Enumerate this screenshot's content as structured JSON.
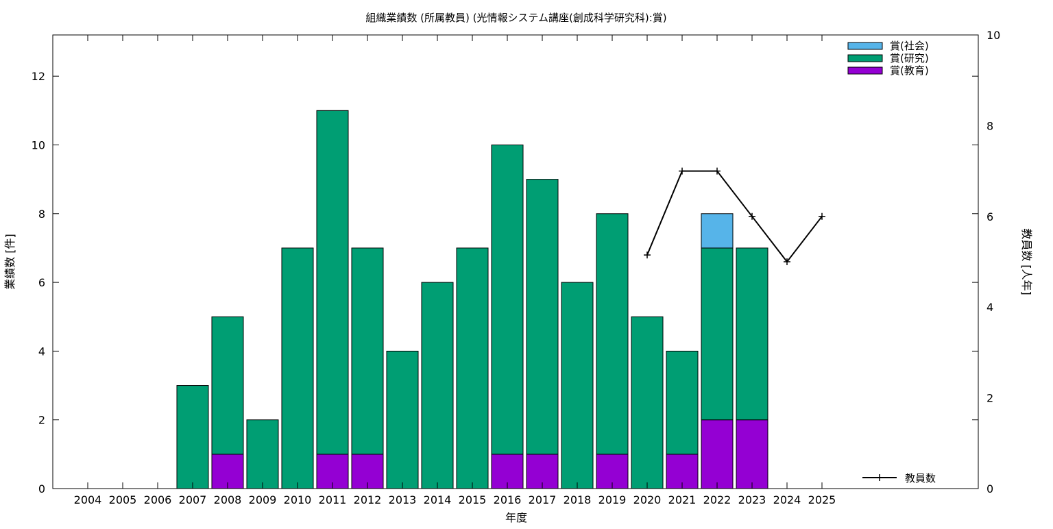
{
  "chart_data": {
    "type": "bar",
    "title": "組織業績数 (所属教員) (光情報システム講座(創成科学研究科):賞)",
    "xlabel": "年度",
    "ylabel": "業績数 [件]",
    "y2label": "教員数 [人年]",
    "ylim": [
      0,
      13.2
    ],
    "y2lim": [
      0,
      10
    ],
    "yticks": [
      "0",
      "2",
      "4",
      "6",
      "8",
      "10",
      "12"
    ],
    "y2ticks": [
      "0",
      "2",
      "4",
      "6",
      "8",
      "10"
    ],
    "categories": [
      "2004",
      "2005",
      "2006",
      "2007",
      "2008",
      "2009",
      "2010",
      "2011",
      "2012",
      "2013",
      "2014",
      "2015",
      "2016",
      "2017",
      "2018",
      "2019",
      "2020",
      "2021",
      "2022",
      "2023",
      "2024",
      "2025"
    ],
    "stacked": true,
    "legend_position": "top-right",
    "series": [
      {
        "name": "賞(教育)",
        "color": "#9400d3",
        "values": [
          0,
          0,
          0,
          0,
          1,
          0,
          0,
          1,
          1,
          0,
          0,
          0,
          1,
          1,
          0,
          1,
          0,
          1,
          2,
          2,
          0,
          0
        ]
      },
      {
        "name": "賞(研究)",
        "color": "#009e73",
        "values": [
          0,
          0,
          0,
          3,
          4,
          2,
          7,
          10,
          6,
          4,
          6,
          7,
          9,
          8,
          6,
          7,
          5,
          3,
          5,
          5,
          0,
          0
        ]
      },
      {
        "name": "賞(社会)",
        "color": "#56b4e9",
        "values": [
          0,
          0,
          0,
          0,
          0,
          0,
          0,
          0,
          0,
          0,
          0,
          0,
          0,
          0,
          0,
          0,
          0,
          0,
          1,
          0,
          0,
          0
        ]
      }
    ],
    "line_series": {
      "name": "教員数",
      "axis": "y2",
      "color": "#000000",
      "legend_position": "bottom-right",
      "points": [
        {
          "x": "2020",
          "y": 5.15
        },
        {
          "x": "2021",
          "y": 7
        },
        {
          "x": "2022",
          "y": 7
        },
        {
          "x": "2023",
          "y": 6
        },
        {
          "x": "2024",
          "y": 5
        },
        {
          "x": "2025",
          "y": 6
        }
      ]
    },
    "grid": false
  }
}
